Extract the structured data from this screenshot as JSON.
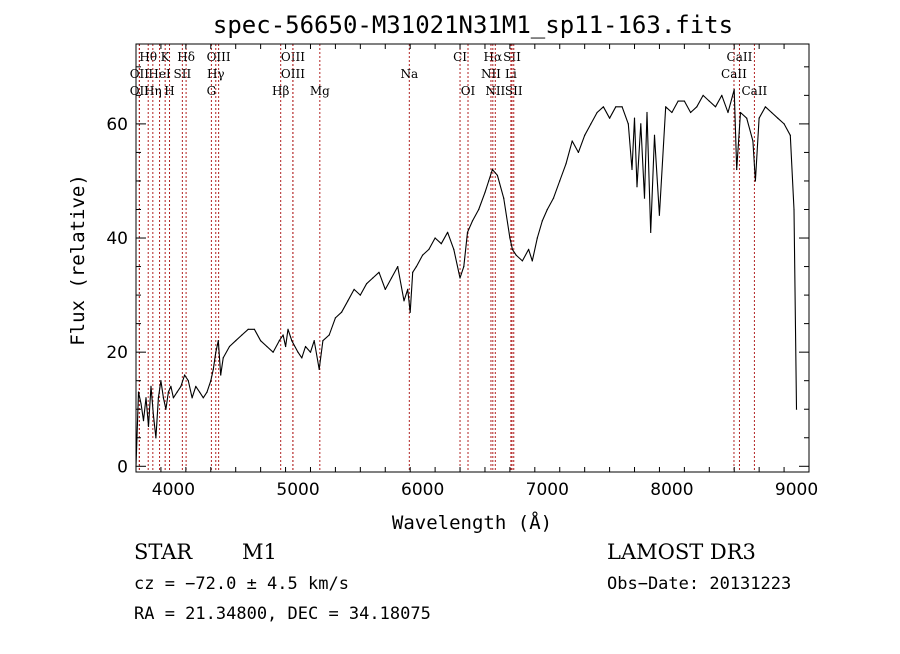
{
  "chart_data": {
    "type": "line",
    "title": "spec-56650-M31021N31M1_sp11-163.fits",
    "xlabel": "Wavelength (Å)",
    "ylabel": "Flux (relative)",
    "xlim": [
      3700,
      9100
    ],
    "ylim": [
      -1,
      74
    ],
    "x_ticks": [
      4000,
      5000,
      6000,
      7000,
      8000,
      9000
    ],
    "y_ticks": [
      0,
      20,
      40,
      60
    ],
    "grid": false,
    "series": [
      {
        "name": "flux",
        "x": [
          3700,
          3720,
          3740,
          3760,
          3780,
          3800,
          3820,
          3840,
          3860,
          3880,
          3900,
          3920,
          3940,
          3960,
          3980,
          4000,
          4030,
          4060,
          4090,
          4120,
          4150,
          4180,
          4210,
          4240,
          4270,
          4300,
          4320,
          4340,
          4360,
          4380,
          4400,
          4450,
          4500,
          4550,
          4600,
          4650,
          4700,
          4750,
          4800,
          4850,
          4880,
          4900,
          4920,
          4950,
          5000,
          5030,
          5060,
          5100,
          5130,
          5170,
          5200,
          5250,
          5300,
          5350,
          5400,
          5450,
          5500,
          5550,
          5600,
          5650,
          5700,
          5750,
          5800,
          5850,
          5880,
          5900,
          5920,
          5950,
          6000,
          6050,
          6100,
          6150,
          6200,
          6250,
          6300,
          6330,
          6360,
          6400,
          6450,
          6500,
          6530,
          6560,
          6600,
          6650,
          6700,
          6720,
          6750,
          6800,
          6850,
          6880,
          6920,
          6960,
          7000,
          7050,
          7100,
          7150,
          7200,
          7250,
          7300,
          7350,
          7400,
          7450,
          7500,
          7550,
          7600,
          7650,
          7680,
          7700,
          7720,
          7750,
          7780,
          7800,
          7830,
          7860,
          7900,
          7950,
          8000,
          8050,
          8100,
          8150,
          8200,
          8250,
          8300,
          8350,
          8400,
          8450,
          8500,
          8520,
          8550,
          8600,
          8650,
          8670,
          8700,
          8750,
          8800,
          8850,
          8900,
          8950,
          8980,
          9000
        ],
        "y": [
          0,
          13,
          11,
          8,
          12,
          7,
          14,
          9,
          5,
          12,
          15,
          12,
          10,
          13,
          14,
          12,
          13,
          14,
          16,
          15,
          12,
          14,
          13,
          12,
          13,
          15,
          17,
          20,
          22,
          16,
          19,
          21,
          22,
          23,
          24,
          24,
          22,
          21,
          20,
          22,
          23,
          21,
          24,
          22,
          20,
          19,
          21,
          20,
          22,
          17,
          22,
          23,
          26,
          27,
          29,
          31,
          30,
          32,
          33,
          34,
          31,
          33,
          35,
          29,
          31,
          27,
          34,
          35,
          37,
          38,
          40,
          39,
          41,
          38,
          33,
          35,
          41,
          43,
          45,
          48,
          50,
          52,
          51,
          47,
          40,
          38,
          37,
          36,
          38,
          36,
          40,
          43,
          45,
          47,
          50,
          53,
          57,
          55,
          58,
          60,
          62,
          63,
          61,
          63,
          63,
          60,
          52,
          61,
          49,
          60,
          47,
          62,
          41,
          58,
          44,
          63,
          62,
          64,
          64,
          62,
          63,
          65,
          64,
          63,
          65,
          62,
          66,
          52,
          62,
          61,
          57,
          50,
          61,
          63,
          62,
          61,
          60,
          58,
          45,
          10
        ]
      }
    ],
    "spectral_lines": [
      {
        "label": "Hθ",
        "wavelength": 3798,
        "row": 1
      },
      {
        "label": "K",
        "wavelength": 3934,
        "row": 1
      },
      {
        "label": "Hδ",
        "wavelength": 4102,
        "row": 1
      },
      {
        "label": "OIII",
        "wavelength": 4363,
        "row": 1
      },
      {
        "label": "OIII",
        "wavelength": 4959,
        "row": 1
      },
      {
        "label": "CI",
        "wavelength": 6300,
        "row": 1
      },
      {
        "label": "Hα",
        "wavelength": 6563,
        "row": 1
      },
      {
        "label": "SII",
        "wavelength": 6717,
        "row": 1
      },
      {
        "label": "CaII",
        "wavelength": 8542,
        "row": 1
      },
      {
        "label": "OII",
        "wavelength": 3727,
        "row": 2
      },
      {
        "label": "HeI",
        "wavelength": 3889,
        "row": 2
      },
      {
        "label": "SII",
        "wavelength": 4072,
        "row": 2
      },
      {
        "label": "Hγ",
        "wavelength": 4340,
        "row": 2
      },
      {
        "label": "OIII",
        "wavelength": 4959,
        "row": 2
      },
      {
        "label": "Na",
        "wavelength": 5893,
        "row": 2
      },
      {
        "label": "NII",
        "wavelength": 6548,
        "row": 2
      },
      {
        "label": "Li",
        "wavelength": 6708,
        "row": 2
      },
      {
        "label": "CaII",
        "wavelength": 8498,
        "row": 2
      },
      {
        "label": "OII",
        "wavelength": 3727,
        "row": 3
      },
      {
        "label": "Hη",
        "wavelength": 3835,
        "row": 3
      },
      {
        "label": "H",
        "wavelength": 3969,
        "row": 3
      },
      {
        "label": "G",
        "wavelength": 4305,
        "row": 3
      },
      {
        "label": "Hβ",
        "wavelength": 4861,
        "row": 3
      },
      {
        "label": "Mg",
        "wavelength": 5175,
        "row": 3
      },
      {
        "label": "OI",
        "wavelength": 6364,
        "row": 3
      },
      {
        "label": "NII",
        "wavelength": 6583,
        "row": 3
      },
      {
        "label": "SII",
        "wavelength": 6731,
        "row": 3
      },
      {
        "label": "CaII",
        "wavelength": 8662,
        "row": 3
      }
    ]
  },
  "info": {
    "class": "STAR",
    "subclass": "M1",
    "survey": "LAMOST DR3",
    "cz": "cz = −72.0 ± 4.5 km/s",
    "obs_date": "Obs−Date: 20131223",
    "coords": "RA =  21.34800, DEC =  34.18075"
  },
  "colors": {
    "line_marker": "#b22222",
    "spectrum": "#000000",
    "axes": "#000000"
  }
}
